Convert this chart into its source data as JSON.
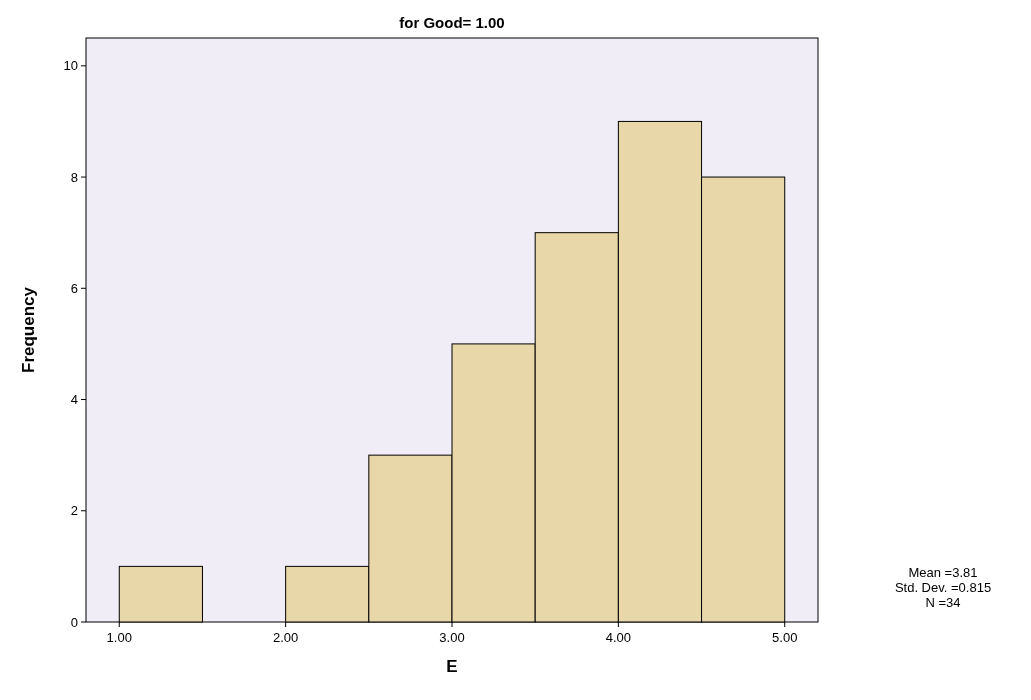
{
  "chart_data": {
    "type": "histogram",
    "title": "for Good= 1.00",
    "xlabel": "E",
    "ylabel": "Frequency",
    "bins": [
      1.0,
      1.5,
      2.0,
      2.5,
      3.0,
      3.5,
      4.0,
      4.5,
      5.0
    ],
    "values": [
      1,
      0,
      1,
      3,
      5,
      7,
      9,
      8
    ],
    "color": "#e8d7a8",
    "xlim": [
      0.8,
      5.2
    ],
    "xticks": [
      {
        "value": 1,
        "label": "1.00"
      },
      {
        "value": 2,
        "label": "2.00"
      },
      {
        "value": 3,
        "label": "3.00"
      },
      {
        "value": 4,
        "label": "4.00"
      },
      {
        "value": 5,
        "label": "5.00"
      }
    ],
    "ylim": [
      0,
      10.5
    ],
    "yticks": [
      0,
      2,
      4,
      6,
      8,
      10
    ],
    "annotations": [
      "Mean =3.81",
      "Std. Dev. =0.815",
      "N =34"
    ]
  }
}
